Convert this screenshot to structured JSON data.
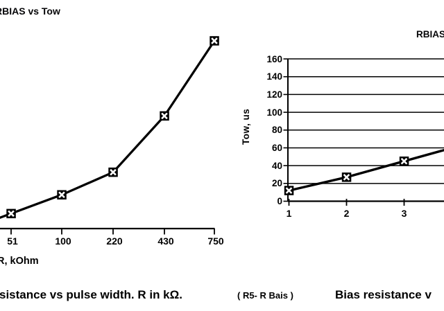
{
  "page": {
    "background": "#ffffff",
    "ink_color": "#000000",
    "description_left_chart_cropped_at_left_edge": true,
    "description_right_chart_cropped_at_right_edge": true
  },
  "captions": {
    "left_main": "sistance vs pulse width. R in kΩ.",
    "left_note": "( R5- R Bais )",
    "right": "Bias resistance v"
  },
  "chart_data": [
    {
      "type": "line",
      "title": "RBIAS vs Tow",
      "categories": [
        "51",
        "100",
        "220",
        "430",
        "750"
      ],
      "values": [
        12,
        27,
        45,
        90,
        150
      ],
      "xlabel": "R, kOhm",
      "ylabel": "",
      "y_axis_visible": false,
      "values_note": "y-axis cropped off screenshot left edge; values estimated from curve geometry",
      "grid": "none",
      "marker": "black-square-with-white-x",
      "line_color": "#000000",
      "line_extends_past_left_edge": true
    },
    {
      "type": "line",
      "title": "RBIAS",
      "x": [
        "1",
        "2",
        "3"
      ],
      "values": [
        12,
        27,
        45
      ],
      "xlabel": "",
      "ylabel": "Tow, us",
      "ylim": [
        0,
        160
      ],
      "ytick_step": 20,
      "grid": "horizontal",
      "marker": "black-square-with-white-x",
      "line_color": "#000000",
      "line_extends_past_right_edge": true,
      "value_at_right_clip_edge": 57
    }
  ]
}
